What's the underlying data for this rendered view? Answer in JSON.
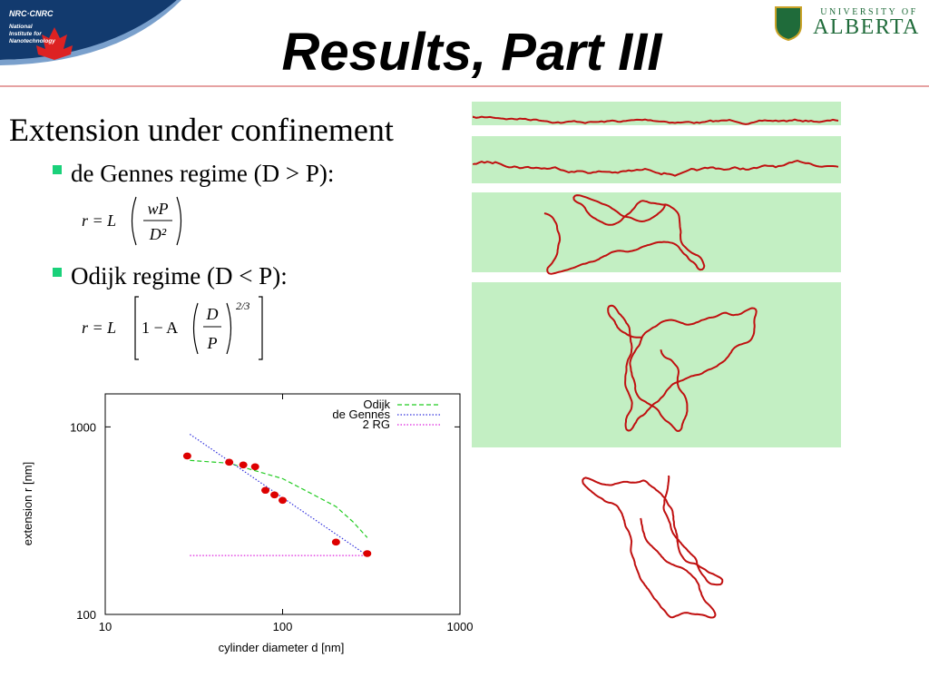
{
  "header": {
    "logo_left": {
      "name": "NRC·CNRC",
      "subtitle": [
        "National",
        "Institute for",
        "Nanotechnology"
      ]
    },
    "title": "Results, Part III",
    "logo_right": {
      "line1": "UNIVERSITY OF",
      "line2": "ALBERTA"
    }
  },
  "heading": "Extension under confinement",
  "bullets": [
    {
      "text": "de Gennes regime (D > P):",
      "formula": {
        "lhs": "r = L",
        "num": "wP",
        "den": "D²"
      }
    },
    {
      "text": "Odijk regime (D < P):",
      "formula": {
        "lhs": "r = L",
        "inner": "1 − A",
        "num": "D",
        "den": "P",
        "exp": "2/3"
      }
    }
  ],
  "chart_data": {
    "type": "line",
    "xlabel": "cylinder diameter  d [nm]",
    "ylabel": "extension  r [nm]",
    "xscale": "log",
    "yscale": "log",
    "xlim": [
      10,
      1000
    ],
    "ylim": [
      100,
      1500
    ],
    "xticks": [
      10,
      100,
      1000
    ],
    "yticks": [
      100,
      1000
    ],
    "legend": "upper right",
    "series": [
      {
        "name": "Odijk",
        "color": "#22cc22",
        "style": "dashed",
        "x": [
          30,
          50,
          100,
          150,
          200,
          250,
          300
        ],
        "values": [
          663,
          640,
          530,
          434,
          376,
          311,
          257
        ]
      },
      {
        "name": "de Gennes",
        "color": "#3333dd",
        "style": "dotted",
        "x": [
          30,
          300
        ],
        "values": [
          914,
          206
        ]
      },
      {
        "name": "2 RG",
        "color": "#dd22dd",
        "style": "dotted",
        "x": [
          30,
          300
        ],
        "values": [
          206,
          206
        ]
      },
      {
        "type": "scatter",
        "color": "#dd0000",
        "x": [
          29,
          50,
          60,
          70,
          80,
          90,
          100,
          200,
          300
        ],
        "values": [
          700,
          648,
          627,
          613,
          459,
          434,
          406,
          243,
          211
        ]
      }
    ]
  }
}
